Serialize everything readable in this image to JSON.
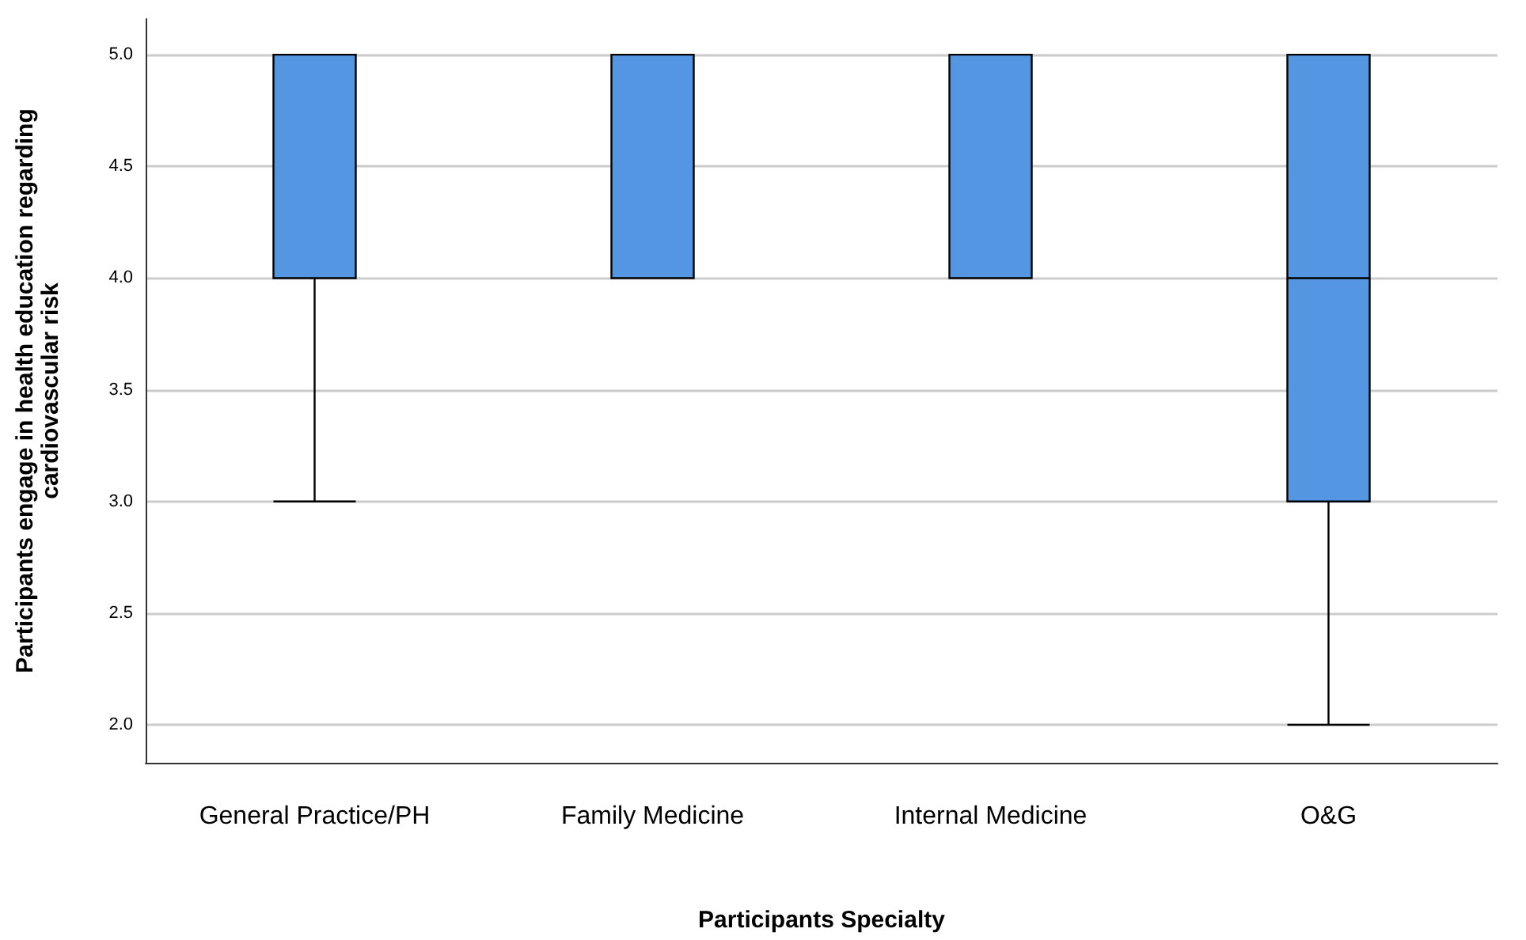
{
  "chart_data": {
    "type": "box",
    "xlabel": "Participants Specialty",
    "ylabel": "Participants engage in health education regarding\ncardiovascular risk",
    "categories": [
      "General Practice/PH",
      "Family Medicine",
      "Internal Medicine",
      "O&G"
    ],
    "boxes": [
      {
        "low": 3,
        "q1": 4,
        "median": 4,
        "q3": 5,
        "high": 5
      },
      {
        "low": 4,
        "q1": 4,
        "median": 5,
        "q3": 5,
        "high": 5
      },
      {
        "low": 4,
        "q1": 4,
        "median": 5,
        "q3": 5,
        "high": 5
      },
      {
        "low": 2,
        "q1": 3,
        "median": 4,
        "q3": 5,
        "high": 5
      }
    ],
    "color": "#5596e3",
    "ylim": [
      1.83,
      5.16
    ],
    "yticks": [
      {
        "value": 2,
        "label": "2.0"
      },
      {
        "value": 2.5,
        "label": "2.5"
      },
      {
        "value": 3,
        "label": "3.0"
      },
      {
        "value": 3.5,
        "label": "3.5"
      },
      {
        "value": 4,
        "label": "4.0"
      },
      {
        "value": 4.5,
        "label": "4.5"
      },
      {
        "value": 5,
        "label": "5.0"
      }
    ],
    "grid": "y"
  }
}
